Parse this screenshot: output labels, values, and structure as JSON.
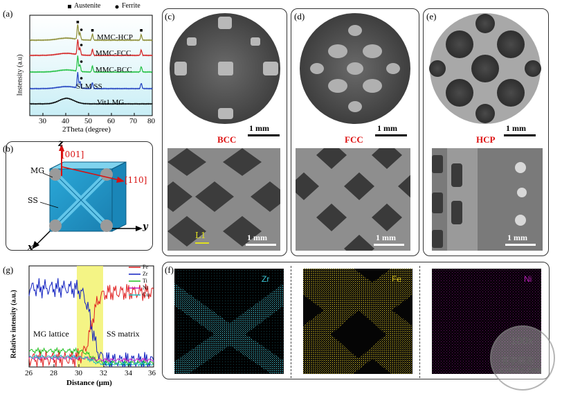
{
  "panel_a": {
    "label": "(a)",
    "legend": {
      "austenite": "Austenite",
      "ferrite": "Ferrite"
    },
    "curves": [
      "MMC-HCP",
      "MMC-FCC",
      "MMC-BCC",
      "SLM SS",
      "Vit1 MG"
    ],
    "curve_colors": [
      "#8a8a30",
      "#d42020",
      "#20c040",
      "#2040c0",
      "#000000"
    ],
    "ylabel": "Instensity (a.u)",
    "xlabel": "2Theta (degree)",
    "xticks": [
      "30",
      "40",
      "50",
      "60",
      "70",
      "80"
    ]
  },
  "panel_b": {
    "label": "(b)",
    "axis_z": "z",
    "axis_x": "x",
    "axis_y": "y",
    "dir_001": "[001]",
    "dir_110": "[110]",
    "mg": "MG",
    "ss": "SS"
  },
  "panel_c": {
    "label": "(c)",
    "title": "BCC",
    "scale_top": "1 mm",
    "scale_bottom": "1 mm",
    "line_label": "L1"
  },
  "panel_d": {
    "label": "(d)",
    "title": "FCC",
    "scale_top": "1 mm",
    "scale_bottom": "1 mm"
  },
  "panel_e": {
    "label": "(e)",
    "title": "HCP",
    "scale_top": "1 mm",
    "scale_bottom": "1 mm"
  },
  "panel_f": {
    "label": "(f)",
    "elements": [
      "Zr",
      "Fe",
      "Ni"
    ],
    "colors": [
      "#3cc8d8",
      "#d8c020",
      "#b020b0"
    ]
  },
  "panel_g": {
    "label": "(g)",
    "ylabel": "Relative intensity (a.u.)",
    "xlabel": "Distance (μm)",
    "xticks": [
      "26",
      "28",
      "30",
      "32",
      "34",
      "36"
    ],
    "region_left": "MG lattice",
    "region_right": "SS matrix",
    "legend": [
      {
        "name": "Fe",
        "color": "#e02020"
      },
      {
        "name": "Zr",
        "color": "#1020c0"
      },
      {
        "name": "Ti",
        "color": "#20c020"
      },
      {
        "name": "Ni",
        "color": "#c020c0"
      },
      {
        "name": "Cu",
        "color": "#20c0c0"
      }
    ]
  },
  "watermark": {
    "line1": "100x",
    "line2": "苍宇辰态",
    "line3": "CYCXLC.COM"
  },
  "chart_data": [
    {
      "type": "line",
      "title": "",
      "xlabel": "2Theta (degree)",
      "ylabel": "Instensity (a.u)",
      "xlim": [
        20,
        80
      ],
      "series": [
        {
          "name": "MMC-HCP",
          "peaks": [
            43.5,
            44.6,
            50.7,
            74.6
          ]
        },
        {
          "name": "MMC-FCC",
          "peaks": [
            43.5,
            44.6,
            50.7,
            74.6
          ]
        },
        {
          "name": "MMC-BCC",
          "peaks": [
            43.5,
            44.6,
            50.7,
            74.6
          ]
        },
        {
          "name": "SLM SS",
          "peaks": [
            43.5,
            44.6,
            50.7,
            74.6
          ]
        },
        {
          "name": "Vit1 MG",
          "peaks": [
            38
          ]
        }
      ]
    },
    {
      "type": "line",
      "title": "",
      "xlabel": "Distance (μm)",
      "ylabel": "Relative intensity (a.u.)",
      "xlim": [
        26,
        36
      ],
      "highlight": [
        30,
        32
      ],
      "series": [
        {
          "name": "Fe",
          "level_left": 0.08,
          "level_right": 0.74
        },
        {
          "name": "Zr",
          "level_left": 0.78,
          "level_right": 0.06
        },
        {
          "name": "Ti",
          "level_left": 0.16,
          "level_right": 0.04
        },
        {
          "name": "Ni",
          "level_left": 0.09,
          "level_right": 0.07
        },
        {
          "name": "Cu",
          "level_left": 0.1,
          "level_right": 0.03
        }
      ]
    }
  ]
}
